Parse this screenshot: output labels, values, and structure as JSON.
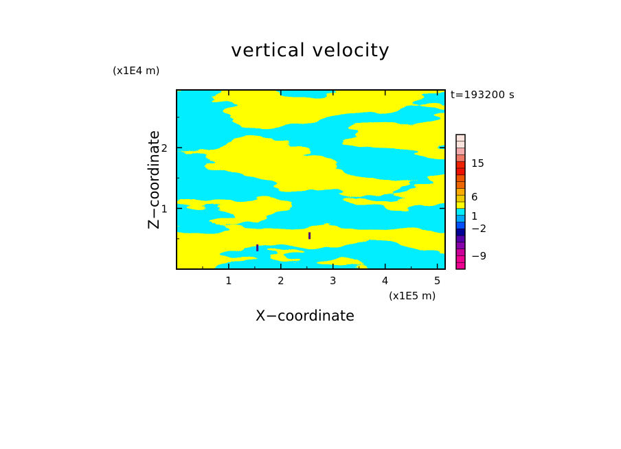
{
  "chart_data": {
    "type": "heatmap",
    "title": "vertical velocity",
    "xlabel": "X−coordinate",
    "ylabel": "Z−coordinate",
    "x_unit": "(x1E5 m)",
    "z_unit": "(x1E4 m)",
    "time_label": "t=193200 s",
    "xlim": [
      0,
      5.15
    ],
    "ylim": [
      0,
      2.95
    ],
    "x_ticks": [
      {
        "value": 1,
        "label": "1"
      },
      {
        "value": 2,
        "label": "2"
      },
      {
        "value": 3,
        "label": "3"
      },
      {
        "value": 4,
        "label": "4"
      },
      {
        "value": 5,
        "label": "5"
      }
    ],
    "y_ticks": [
      {
        "value": 1,
        "label": "1"
      },
      {
        "value": 2,
        "label": "2"
      }
    ],
    "field_colors": {
      "positive": "#ffff00",
      "negative": "#00eeff",
      "strong_negative": "#4b0082"
    },
    "colorbar": {
      "levels": [
        {
          "color": "#ee0090"
        },
        {
          "color": "#ee0090"
        },
        {
          "color": "#cc0099"
        },
        {
          "color": "#8800aa"
        },
        {
          "color": "#5500aa"
        },
        {
          "color": "#000099"
        },
        {
          "color": "#0050ff"
        },
        {
          "color": "#00aaff"
        },
        {
          "color": "#00eeff"
        },
        {
          "color": "#ffff00"
        },
        {
          "color": "#eecc00"
        },
        {
          "color": "#ffaa00"
        },
        {
          "color": "#ee6600"
        },
        {
          "color": "#ee5500"
        },
        {
          "color": "#ee1100"
        },
        {
          "color": "#ee2200"
        },
        {
          "color": "#ee7766"
        },
        {
          "color": "#f2aaaa"
        },
        {
          "color": "#fbe4dd"
        },
        {
          "color": "#fbe4dd"
        }
      ],
      "labels": [
        "15",
        "6",
        "1",
        "−2",
        "−9"
      ]
    }
  }
}
